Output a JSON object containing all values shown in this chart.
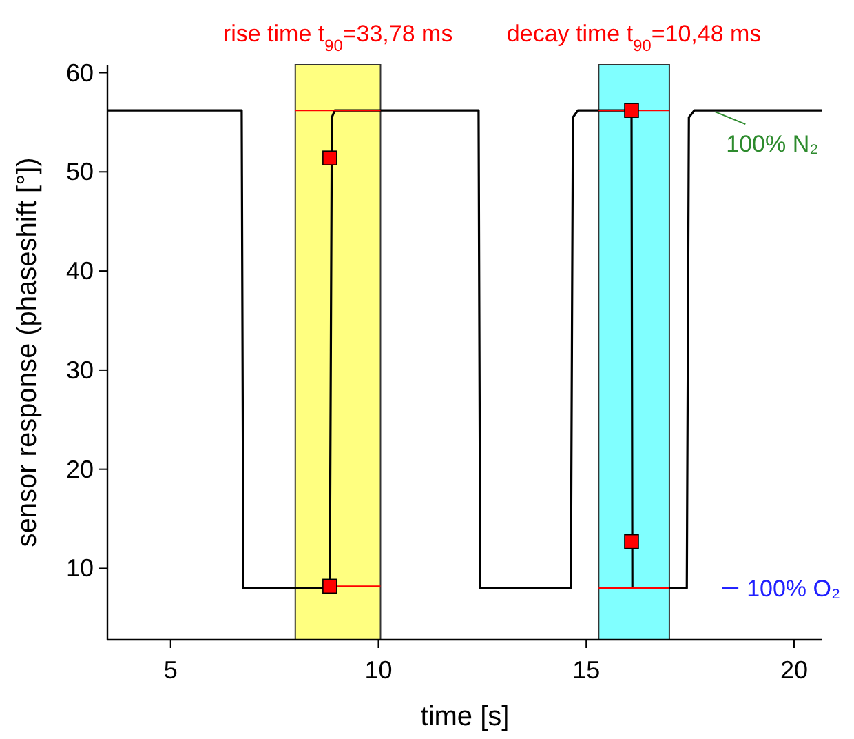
{
  "chart_data": {
    "type": "line",
    "xlabel": "time [s]",
    "ylabel": "sensor response (phaseshift [°])",
    "xlim": [
      3.48,
      20.68
    ],
    "ylim": [
      2.8,
      60.8
    ],
    "xticks": [
      5,
      10,
      15,
      20
    ],
    "yticks": [
      10,
      20,
      30,
      40,
      50,
      60
    ],
    "grid": false,
    "series": [
      {
        "color": "#000000",
        "x": [
          3.48,
          6.71,
          6.75,
          8.83,
          8.88,
          8.95,
          12.41,
          12.45,
          14.63,
          14.68,
          14.8,
          16.09,
          16.11,
          17.42,
          17.47,
          17.6,
          20.68
        ],
        "values": [
          56.2,
          56.2,
          8,
          8,
          55.5,
          56.2,
          56.2,
          8,
          8,
          55.5,
          56.2,
          56.2,
          8,
          8,
          55.5,
          56.2,
          56.2
        ]
      },
      {
        "color": "#ff0000",
        "x": [
          8,
          10.05
        ],
        "values": [
          56.2,
          56.2
        ]
      },
      {
        "color": "#ff0000",
        "x": [
          8.83,
          10.05
        ],
        "values": [
          8.2,
          8.2
        ]
      },
      {
        "color": "#ff0000",
        "x": [
          15.3,
          17
        ],
        "values": [
          56.2,
          56.2
        ]
      },
      {
        "color": "#ff0000",
        "x": [
          15.3,
          17
        ],
        "values": [
          8,
          8
        ]
      },
      {
        "type": "scatter",
        "marker": "square",
        "color": "#ff0000",
        "x": [
          8.83,
          8.83,
          16.09,
          16.09
        ],
        "values": [
          51.4,
          8.2,
          56.2,
          12.7
        ]
      }
    ],
    "bands": [
      {
        "axis": "x",
        "from": 8,
        "to": 10.05,
        "label": "rise time t$_{90}$=33,78 ms",
        "color": "#ffff80"
      },
      {
        "axis": "x",
        "from": 15.3,
        "to": 17,
        "label": "decay time t$_{90}$=10,48 ms",
        "color": "#80ffff"
      }
    ],
    "annotations": [
      {
        "text": "100% N₂",
        "x": 18.1,
        "y": 56.2
      },
      {
        "text": "100% O₂",
        "x": 17.6,
        "y": 8
      }
    ]
  }
}
